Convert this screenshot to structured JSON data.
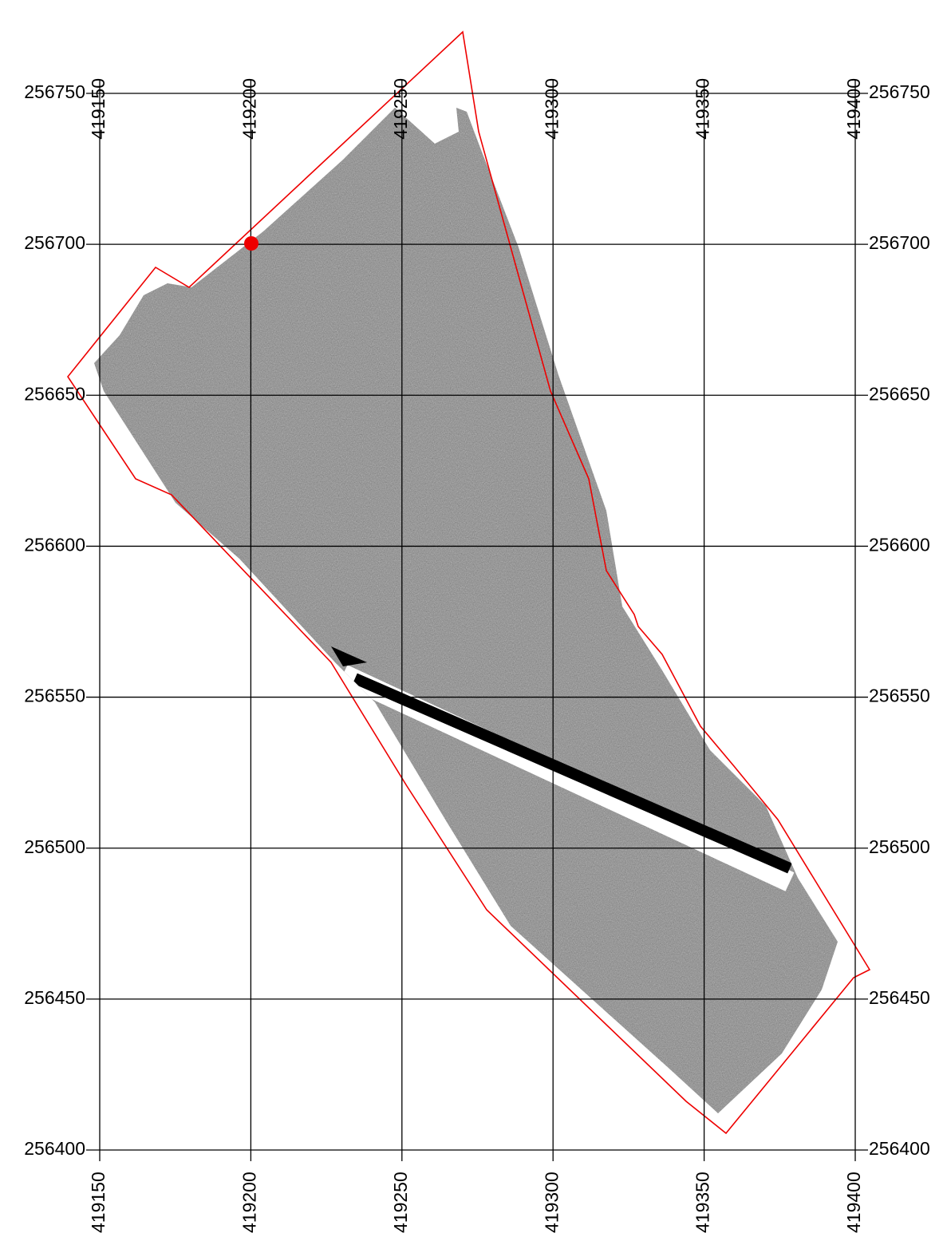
{
  "easting_ticks": [
    419150,
    419200,
    419250,
    419300,
    419350,
    419400
  ],
  "northing_ticks": [
    256400,
    256450,
    256500,
    256550,
    256600,
    256650,
    256700,
    256750
  ]
}
